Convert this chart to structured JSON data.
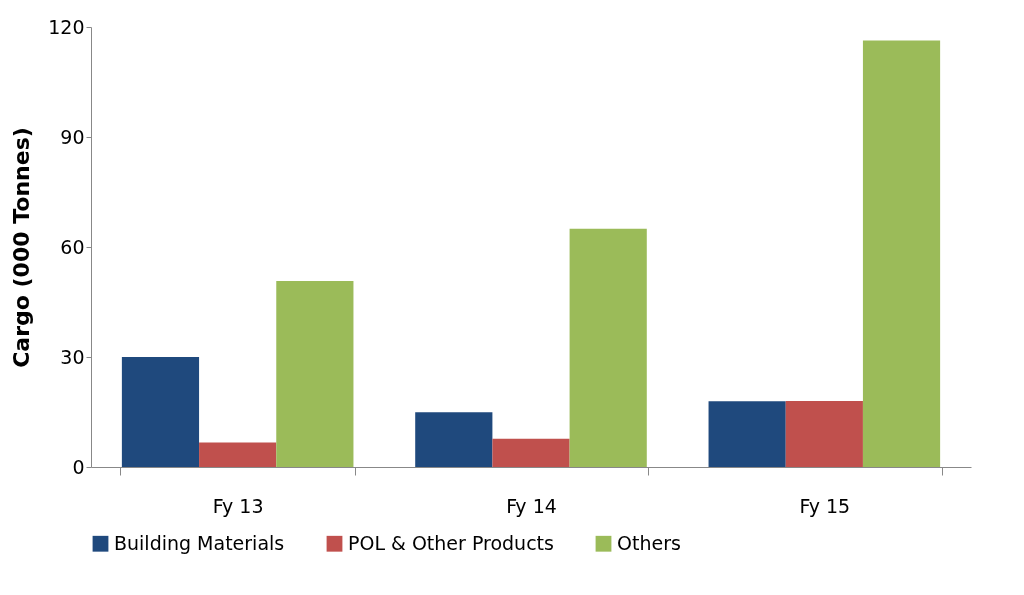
{
  "chart_data": {
    "type": "bar",
    "ylabel": "Cargo (000 Tonnes)",
    "categories": [
      "Fy 13",
      "Fy 14",
      "Fy 15"
    ],
    "series": [
      {
        "name": "Building Materials",
        "color": "#1f497d",
        "values": [
          30,
          14.9,
          17.9
        ]
      },
      {
        "name": "POL & Other Products",
        "color": "#c0504d",
        "values": [
          6.7,
          7.7,
          18
        ]
      },
      {
        "name": "Others",
        "color": "#9bbb59",
        "values": [
          50.7,
          65,
          116.3
        ]
      }
    ],
    "ylim": [
      0,
      120
    ],
    "yticks": [
      0,
      30,
      60,
      90,
      120
    ],
    "grid": false,
    "legend": "bottom"
  }
}
